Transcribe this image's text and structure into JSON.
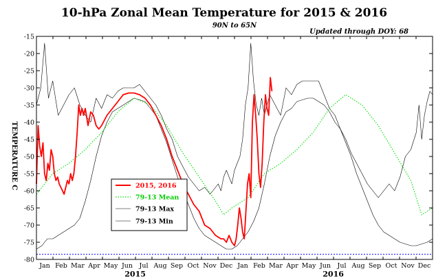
{
  "chart_data": {
    "type": "line",
    "title": "10-hPa Zonal Mean Temperature for 2015 & 2016",
    "subtitle": "90N to 65N",
    "updated": "Updated through DOY:  68",
    "ylabel": "TEMPERATURE C",
    "ylim": [
      -80,
      -15
    ],
    "yticks": [
      -15,
      -20,
      -25,
      -30,
      -35,
      -40,
      -45,
      -50,
      -55,
      -60,
      -65,
      -70,
      -75,
      -80
    ],
    "x_unit": "day since 1 Jan 2015",
    "xlim": [
      0,
      730
    ],
    "month_labels": [
      "Jan",
      "Feb",
      "Mar",
      "Apr",
      "May",
      "Jun",
      "Jul",
      "Aug",
      "Sep",
      "Oct",
      "Nov",
      "Dec",
      "Jan",
      "Feb",
      "Mar",
      "Apr",
      "May",
      "Jun",
      "Jul",
      "Aug",
      "Sep",
      "Oct",
      "Nov",
      "Dec"
    ],
    "year_labels": [
      {
        "label": "2015",
        "x": 182
      },
      {
        "label": "2016",
        "x": 547
      }
    ],
    "reference_line": {
      "y": -78.5,
      "color": "#3333ff"
    },
    "colors": {
      "obs": "#ff0000",
      "mean": "#00dd00",
      "max": "#000000",
      "min": "#000000"
    },
    "legend": [
      "2015, 2016",
      "79-13 Mean",
      "79-13 Max",
      "79-13 Min"
    ],
    "series": [
      {
        "name": "2015, 2016",
        "x": [
          0,
          3,
          6,
          9,
          12,
          15,
          18,
          21,
          24,
          27,
          30,
          33,
          36,
          39,
          42,
          45,
          48,
          51,
          54,
          57,
          60,
          63,
          66,
          69,
          72,
          75,
          78,
          81,
          84,
          87,
          90,
          95,
          100,
          105,
          110,
          115,
          120,
          130,
          140,
          150,
          160,
          170,
          180,
          190,
          200,
          210,
          220,
          230,
          240,
          250,
          260,
          270,
          280,
          290,
          300,
          310,
          320,
          330,
          340,
          345,
          350,
          355,
          360,
          365,
          368,
          371,
          374,
          377,
          380,
          383,
          386,
          389,
          392,
          395,
          398,
          401,
          404,
          407,
          410,
          413,
          416,
          419,
          422,
          425,
          428,
          431,
          434
        ],
        "y": [
          -58,
          -41,
          -47,
          -50,
          -46,
          -55,
          -57,
          -52,
          -54,
          -48,
          -50,
          -55,
          -57,
          -56,
          -58,
          -59,
          -60,
          -61,
          -59,
          -57,
          -58,
          -55,
          -57,
          -55,
          -50,
          -43,
          -35,
          -38,
          -36,
          -38,
          -36,
          -41,
          -37,
          -38,
          -41,
          -42,
          -41,
          -38,
          -36,
          -34,
          -32,
          -31.5,
          -31.5,
          -32,
          -33,
          -35,
          -38,
          -41,
          -45,
          -50,
          -54,
          -58,
          -61,
          -64,
          -66,
          -70,
          -71,
          -73,
          -74,
          -74,
          -75,
          -73,
          -75,
          -76,
          -74,
          -70,
          -65,
          -68,
          -72,
          -74,
          -66,
          -58,
          -55,
          -62,
          -40,
          -32,
          -38,
          -45,
          -55,
          -59,
          -52,
          -40,
          -32,
          -36,
          -38,
          -27,
          -31
        ]
      },
      {
        "name": "79-13 Mean",
        "x": [
          0,
          30,
          60,
          90,
          120,
          150,
          180,
          210,
          240,
          270,
          300,
          330,
          345,
          360,
          390,
          420,
          450,
          480,
          510,
          540,
          570,
          600,
          630,
          660,
          690,
          710,
          730
        ],
        "y": [
          -61,
          -55,
          -52,
          -48,
          -43,
          -37,
          -33,
          -35,
          -41,
          -49,
          -56,
          -63,
          -67,
          -65,
          -62,
          -55,
          -52,
          -48,
          -43,
          -36,
          -32,
          -35,
          -41,
          -49,
          -57,
          -67,
          -65
        ]
      },
      {
        "name": "79-13 Max",
        "x": [
          0,
          8,
          15,
          22,
          30,
          40,
          50,
          60,
          70,
          80,
          90,
          100,
          110,
          120,
          130,
          140,
          150,
          160,
          170,
          180,
          190,
          200,
          210,
          220,
          230,
          240,
          250,
          260,
          270,
          280,
          290,
          300,
          310,
          320,
          330,
          335,
          340,
          345,
          350,
          355,
          360,
          365,
          370,
          375,
          380,
          385,
          390,
          395,
          400,
          405,
          410,
          415,
          420,
          430,
          440,
          450,
          460,
          470,
          480,
          490,
          500,
          510,
          520,
          530,
          540,
          550,
          560,
          570,
          580,
          590,
          600,
          610,
          620,
          630,
          640,
          650,
          660,
          670,
          680,
          690,
          700,
          705,
          710,
          715,
          720,
          725,
          730
        ],
        "y": [
          -35,
          -30,
          -17,
          -33,
          -28,
          -38,
          -35,
          -32,
          -30,
          -35,
          -38,
          -40,
          -33,
          -36,
          -32,
          -33,
          -31,
          -30,
          -30,
          -30,
          -29,
          -31,
          -33,
          -35,
          -38,
          -42,
          -45,
          -50,
          -53,
          -56,
          -58,
          -60,
          -59,
          -61,
          -59,
          -58,
          -60,
          -56,
          -54,
          -56,
          -58,
          -54,
          -52,
          -50,
          -45,
          -35,
          -30,
          -17,
          -28,
          -35,
          -38,
          -33,
          -38,
          -32,
          -35,
          -38,
          -30,
          -32,
          -29,
          -28,
          -28,
          -28,
          -28,
          -32,
          -36,
          -38,
          -42,
          -45,
          -49,
          -52,
          -55,
          -58,
          -60,
          -62,
          -60,
          -58,
          -60,
          -56,
          -50,
          -48,
          -43,
          -35,
          -45,
          -38,
          -34,
          -31,
          -32
        ]
      },
      {
        "name": "79-13 Min",
        "x": [
          0,
          10,
          20,
          30,
          40,
          50,
          60,
          70,
          80,
          90,
          100,
          110,
          120,
          130,
          140,
          150,
          160,
          170,
          180,
          190,
          200,
          210,
          220,
          230,
          240,
          250,
          260,
          270,
          280,
          290,
          300,
          310,
          320,
          330,
          340,
          350,
          360,
          370,
          380,
          390,
          400,
          410,
          420,
          430,
          440,
          450,
          460,
          470,
          480,
          490,
          500,
          510,
          520,
          530,
          540,
          550,
          560,
          570,
          580,
          590,
          600,
          610,
          620,
          630,
          640,
          650,
          660,
          670,
          680,
          690,
          700,
          710,
          720,
          730
        ],
        "y": [
          -77,
          -76,
          -74,
          -74,
          -73,
          -72,
          -71,
          -70,
          -68,
          -63,
          -57,
          -50,
          -44,
          -40,
          -37,
          -36,
          -35,
          -34,
          -33,
          -33.5,
          -34,
          -36,
          -38,
          -42,
          -46,
          -51,
          -56,
          -60,
          -64,
          -68,
          -71,
          -73,
          -74,
          -75,
          -76,
          -77,
          -77,
          -76,
          -74,
          -72,
          -69,
          -65,
          -58,
          -50,
          -44,
          -40,
          -37,
          -36,
          -34,
          -33.5,
          -33,
          -33,
          -34,
          -35,
          -37,
          -40,
          -42,
          -46,
          -50,
          -55,
          -59,
          -63,
          -67,
          -70,
          -72,
          -73,
          -74,
          -75,
          -75.5,
          -76,
          -76,
          -75.5,
          -75,
          -74
        ]
      }
    ]
  }
}
